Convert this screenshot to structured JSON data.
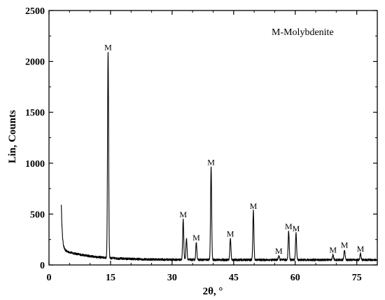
{
  "chart_data": {
    "type": "line",
    "title": "",
    "xlabel": "2θ, °",
    "ylabel": "Lin, Counts",
    "xlim": [
      0,
      80
    ],
    "ylim": [
      0,
      2500
    ],
    "x_ticks": [
      0,
      15,
      30,
      45,
      60,
      75
    ],
    "y_ticks": [
      0,
      500,
      1000,
      1500,
      2000,
      2500
    ],
    "grid": false,
    "legend": {
      "text": "M-Molybdenite",
      "placement": "top-right"
    },
    "line_color": "#000000",
    "background": {
      "start": 3,
      "start_value": 600,
      "decay_value": 150,
      "base_value": 50,
      "end": 80
    },
    "peaks": [
      {
        "x": 14.4,
        "y": 2090
      },
      {
        "x": 32.7,
        "y": 450
      },
      {
        "x": 33.5,
        "y": 260
      },
      {
        "x": 35.9,
        "y": 220
      },
      {
        "x": 39.5,
        "y": 960
      },
      {
        "x": 44.2,
        "y": 260
      },
      {
        "x": 49.8,
        "y": 530
      },
      {
        "x": 56.0,
        "y": 90
      },
      {
        "x": 58.4,
        "y": 330
      },
      {
        "x": 60.2,
        "y": 310
      },
      {
        "x": 69.2,
        "y": 100
      },
      {
        "x": 72.0,
        "y": 150
      },
      {
        "x": 75.9,
        "y": 110
      }
    ],
    "annotations": [
      {
        "x": 14.4,
        "y": 2110,
        "text": "M"
      },
      {
        "x": 32.7,
        "y": 470,
        "text": "M"
      },
      {
        "x": 35.9,
        "y": 240,
        "text": "M"
      },
      {
        "x": 39.5,
        "y": 980,
        "text": "M"
      },
      {
        "x": 44.2,
        "y": 280,
        "text": "M"
      },
      {
        "x": 49.8,
        "y": 550,
        "text": "M"
      },
      {
        "x": 56.0,
        "y": 110,
        "text": "M"
      },
      {
        "x": 58.4,
        "y": 350,
        "text": "M"
      },
      {
        "x": 60.2,
        "y": 330,
        "text": "M"
      },
      {
        "x": 69.2,
        "y": 120,
        "text": "M"
      },
      {
        "x": 72.0,
        "y": 170,
        "text": "M"
      },
      {
        "x": 75.9,
        "y": 130,
        "text": "M"
      }
    ]
  }
}
